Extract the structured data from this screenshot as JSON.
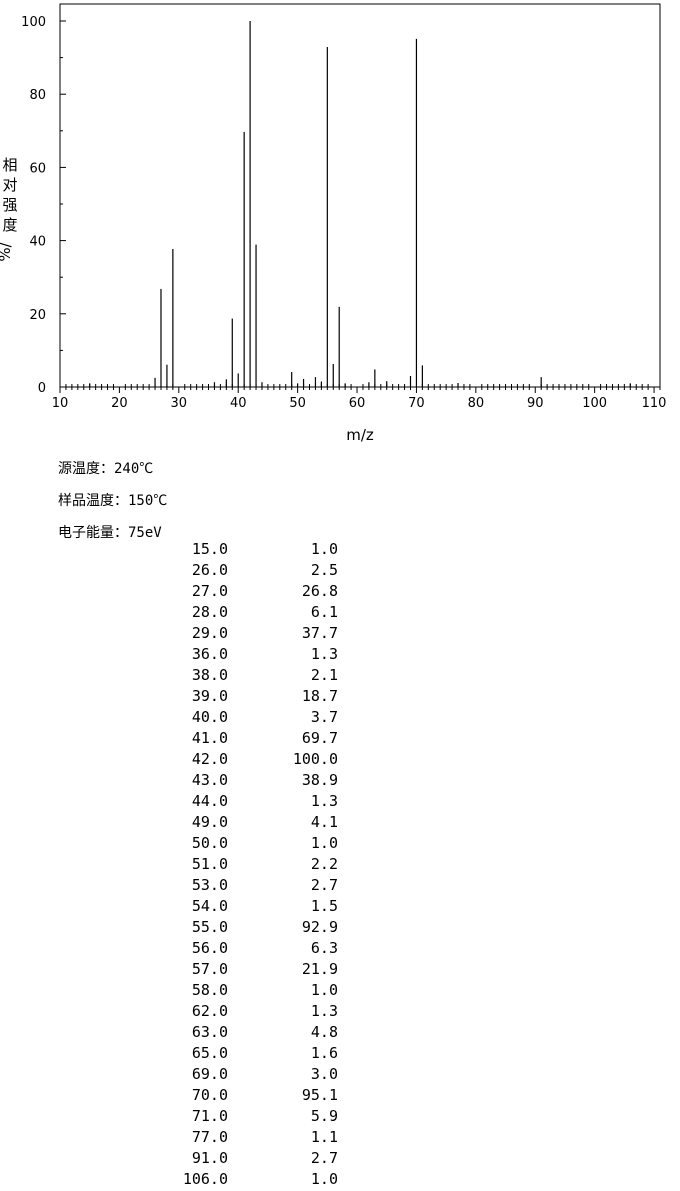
{
  "chart_data": {
    "type": "bar",
    "xlabel": "m/z",
    "ylabel": "相对强度",
    "ylabel_unit": "%/",
    "xlim": [
      10,
      111
    ],
    "ylim": [
      0,
      100
    ],
    "x_ticks": [
      10,
      20,
      30,
      40,
      50,
      60,
      70,
      80,
      90,
      100,
      110
    ],
    "y_ticks": [
      0,
      20,
      40,
      60,
      80,
      100
    ],
    "grid": false,
    "peaks": [
      {
        "mz": 15,
        "intensity": 1.0
      },
      {
        "mz": 26,
        "intensity": 2.5
      },
      {
        "mz": 27,
        "intensity": 26.8
      },
      {
        "mz": 28,
        "intensity": 6.1
      },
      {
        "mz": 29,
        "intensity": 37.7
      },
      {
        "mz": 36,
        "intensity": 1.3
      },
      {
        "mz": 38,
        "intensity": 2.1
      },
      {
        "mz": 39,
        "intensity": 18.7
      },
      {
        "mz": 40,
        "intensity": 3.7
      },
      {
        "mz": 41,
        "intensity": 69.7
      },
      {
        "mz": 42,
        "intensity": 100.0
      },
      {
        "mz": 43,
        "intensity": 38.9
      },
      {
        "mz": 44,
        "intensity": 1.3
      },
      {
        "mz": 49,
        "intensity": 4.1
      },
      {
        "mz": 50,
        "intensity": 1.0
      },
      {
        "mz": 51,
        "intensity": 2.2
      },
      {
        "mz": 53,
        "intensity": 2.7
      },
      {
        "mz": 54,
        "intensity": 1.5
      },
      {
        "mz": 55,
        "intensity": 92.9
      },
      {
        "mz": 56,
        "intensity": 6.3
      },
      {
        "mz": 57,
        "intensity": 21.9
      },
      {
        "mz": 58,
        "intensity": 1.0
      },
      {
        "mz": 62,
        "intensity": 1.3
      },
      {
        "mz": 63,
        "intensity": 4.8
      },
      {
        "mz": 65,
        "intensity": 1.6
      },
      {
        "mz": 69,
        "intensity": 3.0
      },
      {
        "mz": 70,
        "intensity": 95.1
      },
      {
        "mz": 71,
        "intensity": 5.9
      },
      {
        "mz": 77,
        "intensity": 1.1
      },
      {
        "mz": 91,
        "intensity": 2.7
      },
      {
        "mz": 106,
        "intensity": 1.0
      }
    ]
  },
  "conditions": {
    "source_temp": "源温度：240℃",
    "sample_temp": "样品温度：150℃",
    "electron_energy": "电子能量：75eV"
  },
  "peak_table": [
    {
      "mz": "15.0",
      "intensity": "1.0"
    },
    {
      "mz": "26.0",
      "intensity": "2.5"
    },
    {
      "mz": "27.0",
      "intensity": "26.8"
    },
    {
      "mz": "28.0",
      "intensity": "6.1"
    },
    {
      "mz": "29.0",
      "intensity": "37.7"
    },
    {
      "mz": "36.0",
      "intensity": "1.3"
    },
    {
      "mz": "38.0",
      "intensity": "2.1"
    },
    {
      "mz": "39.0",
      "intensity": "18.7"
    },
    {
      "mz": "40.0",
      "intensity": "3.7"
    },
    {
      "mz": "41.0",
      "intensity": "69.7"
    },
    {
      "mz": "42.0",
      "intensity": "100.0"
    },
    {
      "mz": "43.0",
      "intensity": "38.9"
    },
    {
      "mz": "44.0",
      "intensity": "1.3"
    },
    {
      "mz": "49.0",
      "intensity": "4.1"
    },
    {
      "mz": "50.0",
      "intensity": "1.0"
    },
    {
      "mz": "51.0",
      "intensity": "2.2"
    },
    {
      "mz": "53.0",
      "intensity": "2.7"
    },
    {
      "mz": "54.0",
      "intensity": "1.5"
    },
    {
      "mz": "55.0",
      "intensity": "92.9"
    },
    {
      "mz": "56.0",
      "intensity": "6.3"
    },
    {
      "mz": "57.0",
      "intensity": "21.9"
    },
    {
      "mz": "58.0",
      "intensity": "1.0"
    },
    {
      "mz": "62.0",
      "intensity": "1.3"
    },
    {
      "mz": "63.0",
      "intensity": "4.8"
    },
    {
      "mz": "65.0",
      "intensity": "1.6"
    },
    {
      "mz": "69.0",
      "intensity": "3.0"
    },
    {
      "mz": "70.0",
      "intensity": "95.1"
    },
    {
      "mz": "71.0",
      "intensity": "5.9"
    },
    {
      "mz": "77.0",
      "intensity": "1.1"
    },
    {
      "mz": "91.0",
      "intensity": "2.7"
    },
    {
      "mz": "106.0",
      "intensity": "1.0"
    }
  ]
}
